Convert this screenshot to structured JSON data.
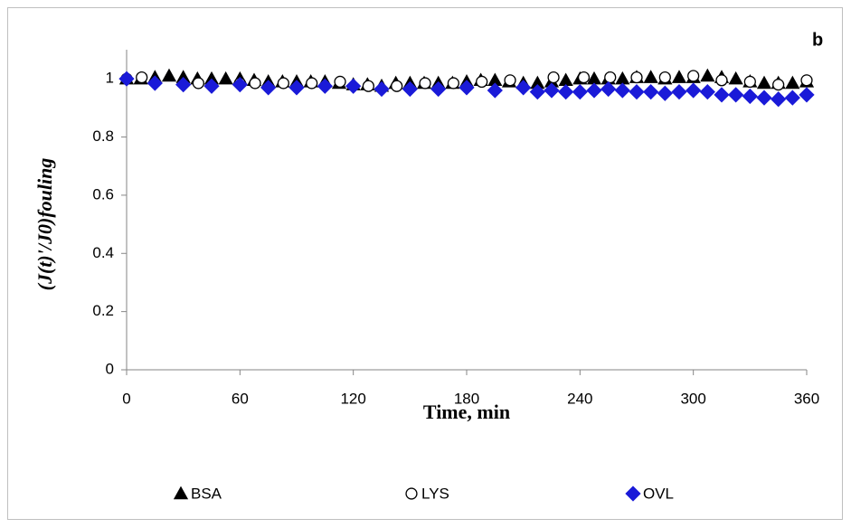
{
  "chart_data": {
    "type": "scatter",
    "annotation": "b",
    "x_label": "Time, min",
    "y_label": "(J(t)'/J0)fouling",
    "xlim": [
      0,
      360
    ],
    "xticks": [
      0,
      60,
      120,
      180,
      240,
      300,
      360
    ],
    "ylim": [
      0,
      1.1
    ],
    "yticks": [
      0,
      0.2,
      0.4,
      0.6,
      0.8,
      1
    ],
    "grid": false,
    "legend": "bottom",
    "series": [
      {
        "name": "BSA",
        "color": "#000000",
        "marker": "triangle",
        "x": [
          0,
          7.5,
          15,
          22.5,
          30,
          37.5,
          45,
          52.5,
          60,
          67.5,
          75,
          82.5,
          90,
          97.5,
          105,
          112.5,
          120,
          127.5,
          135,
          142.5,
          150,
          157.5,
          165,
          172.5,
          180,
          187.5,
          195,
          202.5,
          210,
          217.5,
          225,
          232.5,
          240,
          247.5,
          255,
          262.5,
          270,
          277.5,
          285,
          292.5,
          300,
          307.5,
          315,
          322.5,
          330,
          337.5,
          345,
          352.5,
          360
        ],
        "values": [
          1.0,
          1.0,
          1.005,
          1.01,
          1.005,
          1.0,
          1.0,
          1.0,
          1.0,
          0.995,
          0.99,
          0.99,
          0.99,
          0.99,
          0.99,
          0.985,
          0.98,
          0.98,
          0.975,
          0.985,
          0.985,
          0.985,
          0.985,
          0.985,
          0.99,
          0.995,
          0.995,
          0.99,
          0.985,
          0.985,
          0.99,
          0.995,
          1.0,
          1.0,
          1.0,
          1.0,
          1.005,
          1.005,
          1.0,
          1.005,
          1.005,
          1.01,
          1.005,
          1.0,
          0.99,
          0.985,
          0.985,
          0.985,
          0.99
        ]
      },
      {
        "name": "LYS",
        "color": "#ffffff",
        "marker": "circle",
        "x": [
          0,
          8,
          38,
          60,
          68,
          83,
          98,
          113,
          128,
          143,
          158,
          173,
          188,
          203,
          226,
          242,
          256,
          270,
          285,
          300,
          315,
          330,
          345,
          360
        ],
        "values": [
          1.0,
          1.005,
          0.985,
          0.985,
          0.985,
          0.985,
          0.985,
          0.99,
          0.975,
          0.975,
          0.985,
          0.985,
          0.99,
          0.995,
          1.005,
          1.005,
          1.005,
          1.005,
          1.005,
          1.01,
          0.995,
          0.99,
          0.98,
          0.995
        ]
      },
      {
        "name": "OVL",
        "color": "#1a1ad8",
        "marker": "diamond",
        "x": [
          0,
          15,
          30,
          45,
          60,
          75,
          90,
          105,
          120,
          135,
          150,
          165,
          180,
          195,
          210,
          217.5,
          225,
          232.5,
          240,
          247.5,
          255,
          262.5,
          270,
          277.5,
          285,
          292.5,
          300,
          307.5,
          315,
          322.5,
          330,
          337.5,
          345,
          352.5,
          360
        ],
        "values": [
          1.0,
          0.985,
          0.98,
          0.975,
          0.98,
          0.97,
          0.97,
          0.975,
          0.975,
          0.965,
          0.965,
          0.965,
          0.97,
          0.96,
          0.97,
          0.955,
          0.96,
          0.955,
          0.955,
          0.96,
          0.965,
          0.96,
          0.955,
          0.955,
          0.95,
          0.955,
          0.96,
          0.955,
          0.945,
          0.945,
          0.94,
          0.935,
          0.93,
          0.935,
          0.945
        ]
      }
    ]
  }
}
